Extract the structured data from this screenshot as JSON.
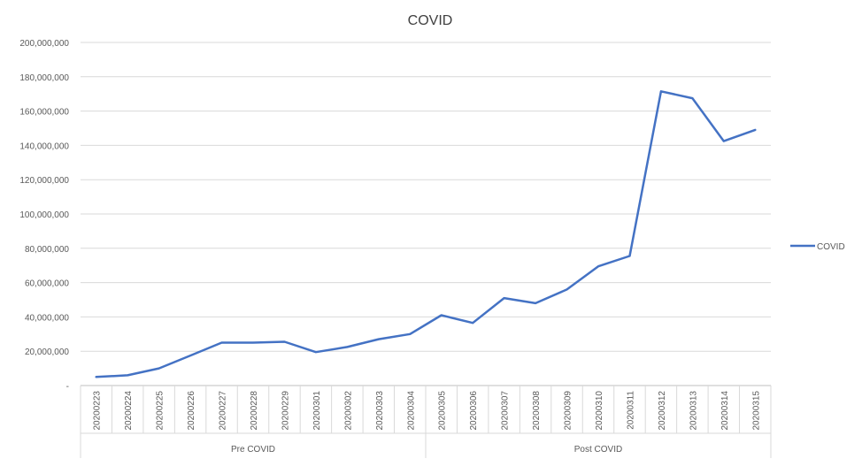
{
  "chart_data": {
    "type": "line",
    "title": "COVID",
    "xlabel": "",
    "ylabel": "",
    "ylim": [
      0,
      200000000
    ],
    "y_ticks": [
      {
        "value": 0,
        "label": "-"
      },
      {
        "value": 20000000,
        "label": "20,000,000"
      },
      {
        "value": 40000000,
        "label": "40,000,000"
      },
      {
        "value": 60000000,
        "label": "60,000,000"
      },
      {
        "value": 80000000,
        "label": "80,000,000"
      },
      {
        "value": 100000000,
        "label": "100,000,000"
      },
      {
        "value": 120000000,
        "label": "120,000,000"
      },
      {
        "value": 140000000,
        "label": "140,000,000"
      },
      {
        "value": 160000000,
        "label": "160,000,000"
      },
      {
        "value": 180000000,
        "label": "180,000,000"
      },
      {
        "value": 200000000,
        "label": "200,000,000"
      }
    ],
    "categories": [
      "20200223",
      "20200224",
      "20200225",
      "20200226",
      "20200227",
      "20200228",
      "20200229",
      "20200301",
      "20200302",
      "20200303",
      "20200304",
      "20200305",
      "20200306",
      "20200307",
      "20200308",
      "20200309",
      "20200310",
      "20200311",
      "20200312",
      "20200313",
      "20200314",
      "20200315"
    ],
    "groups": [
      {
        "label": "Pre COVID",
        "start": 0,
        "end": 10
      },
      {
        "label": "Post COVID",
        "start": 11,
        "end": 21
      }
    ],
    "series": [
      {
        "name": "COVID",
        "color": "#4472c4",
        "values": [
          5000000,
          6000000,
          10000000,
          17500000,
          25000000,
          25000000,
          25500000,
          19500000,
          22500000,
          27000000,
          30000000,
          41000000,
          36500000,
          51000000,
          48000000,
          56000000,
          69500000,
          75500000,
          171500000,
          167500000,
          142500000,
          149000000
        ]
      }
    ],
    "grid": true,
    "legend_position": "right"
  }
}
